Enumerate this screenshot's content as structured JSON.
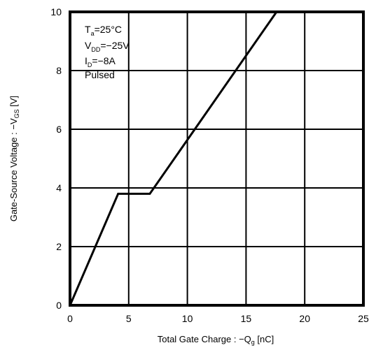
{
  "chart_data": {
    "type": "line",
    "title": "",
    "xlabel": {
      "main": "Total Gate Charge : −Q",
      "sub": "g",
      "unit": " [nC]"
    },
    "ylabel": {
      "main": "Gate-Source Voltage : −V",
      "sub": "GS",
      "unit": " [V]"
    },
    "xlim": [
      0,
      25
    ],
    "ylim": [
      0,
      10
    ],
    "xticks": [
      0,
      5,
      10,
      15,
      20,
      25
    ],
    "yticks": [
      0,
      2,
      4,
      6,
      8,
      10
    ],
    "grid": true,
    "series": [
      {
        "x": [
          0,
          4.1,
          6.8,
          17.6
        ],
        "y": [
          0,
          3.8,
          3.8,
          10
        ]
      }
    ],
    "annotation": {
      "ta": {
        "main": "T",
        "sub": "a",
        "rest": "=25°C"
      },
      "vdd": {
        "main": "V",
        "sub": "DD",
        "rest": "=−25V"
      },
      "id": {
        "main": "I",
        "sub": "D",
        "rest": "=−8A"
      },
      "mode": "Pulsed"
    }
  }
}
